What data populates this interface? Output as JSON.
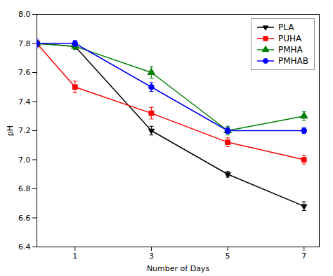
{
  "chart_data": {
    "type": "line",
    "xlabel": "Number of Days",
    "ylabel": "pH",
    "x": [
      0,
      1,
      3,
      5,
      7
    ],
    "series": [
      {
        "name": "PLA",
        "color": "black",
        "marker": "triangle-down",
        "values": [
          7.8,
          7.78,
          7.2,
          6.9,
          6.68
        ],
        "yerr": [
          0.02,
          0.02,
          0.03,
          0.02,
          0.03
        ]
      },
      {
        "name": "PUHA",
        "color": "red",
        "marker": "square",
        "values": [
          7.8,
          7.5,
          7.32,
          7.12,
          7.0
        ],
        "yerr": [
          0.02,
          0.04,
          0.04,
          0.03,
          0.03
        ]
      },
      {
        "name": "PMHA",
        "color": "green",
        "marker": "triangle-up",
        "values": [
          7.8,
          7.78,
          7.6,
          7.2,
          7.3
        ],
        "yerr": [
          0.02,
          0.02,
          0.04,
          0.03,
          0.03
        ]
      },
      {
        "name": "PMHAB",
        "color": "blue",
        "marker": "circle",
        "values": [
          7.8,
          7.8,
          7.5,
          7.2,
          7.2
        ],
        "yerr": [
          0.03,
          0.02,
          0.03,
          0.02,
          0.02
        ]
      }
    ],
    "xlim": [
      0,
      7.4
    ],
    "xticks": [
      1,
      3,
      5,
      7
    ],
    "ylim": [
      6.4,
      8.0
    ],
    "yticks": [
      6.4,
      6.6,
      6.8,
      {
        "value": 7.0,
        "label": "7.0"
      },
      7.2,
      7.4,
      7.6,
      7.8,
      {
        "value": 8.0,
        "label": "8.0"
      }
    ],
    "legend": "upper right"
  }
}
